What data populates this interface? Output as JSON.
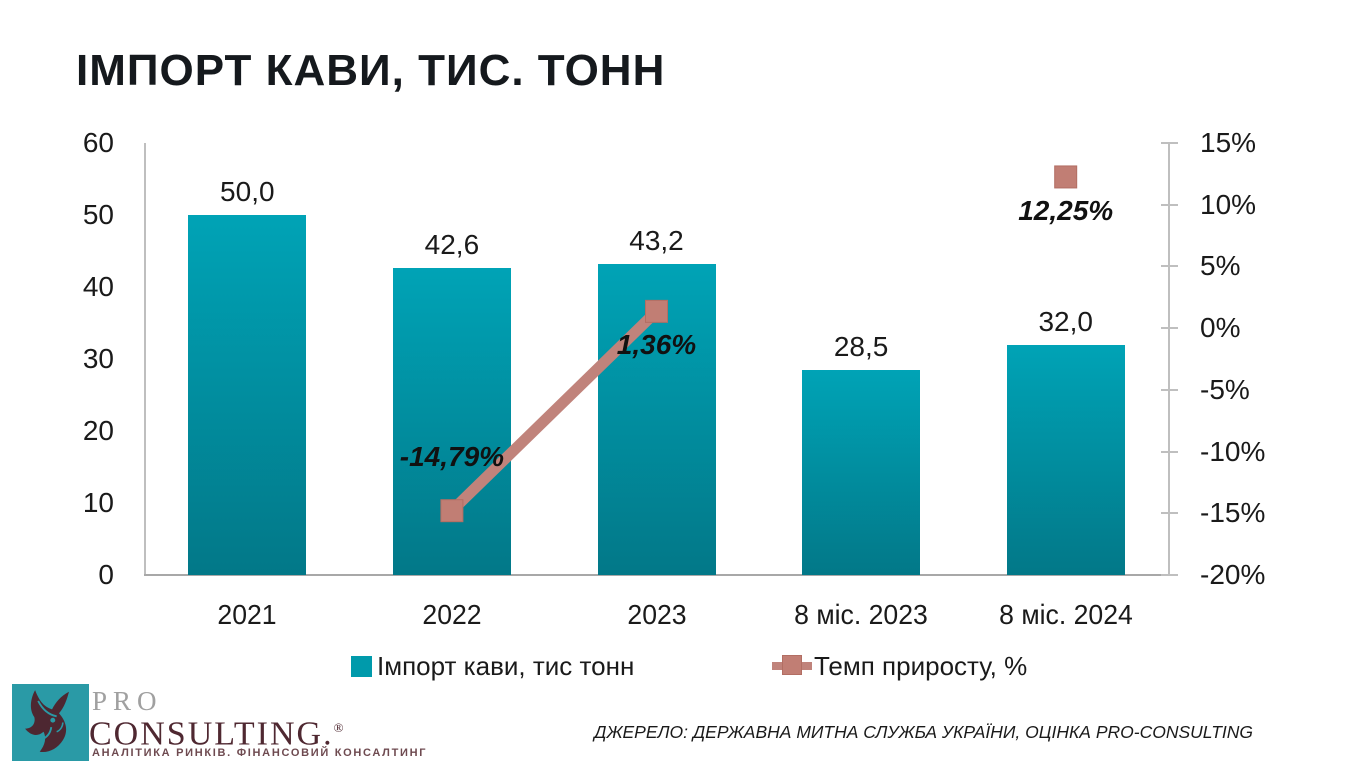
{
  "title": "ІМПОРТ КАВИ, ТИС. ТОНН",
  "chart_data": {
    "type": "combo bar+line",
    "categories": [
      "2021",
      "2022",
      "2023",
      "8 міс. 2023",
      "8 міс. 2024"
    ],
    "bar_series": {
      "name": "Імпорт кави, тис тонн",
      "values": [
        50.0,
        42.6,
        43.2,
        28.5,
        32.0
      ],
      "value_labels": [
        "50,0",
        "42,6",
        "43,2",
        "28,5",
        "32,0"
      ]
    },
    "line_series": {
      "name": "Темп приросту, %",
      "points": [
        {
          "category_index": 1,
          "value": -14.79,
          "label": "-14,79%",
          "label_pos": "above"
        },
        {
          "category_index": 2,
          "value": 1.36,
          "label": "1,36%",
          "label_pos": "below"
        },
        {
          "category_index": 4,
          "value": 12.25,
          "label": "12,25%",
          "label_pos": "below"
        }
      ],
      "segments": [
        [
          1,
          2
        ]
      ]
    },
    "left_axis": {
      "min": 0,
      "max": 60,
      "ticks": [
        "60",
        "50",
        "40",
        "30",
        "20",
        "10",
        "0"
      ]
    },
    "right_axis": {
      "min": -20,
      "max": 15,
      "ticks": [
        "15%",
        "10%",
        "5%",
        "0%",
        "-5%",
        "-10%",
        "-15%",
        "-20%"
      ]
    },
    "grid": false,
    "legend_position": "bottom",
    "legend": [
      {
        "label": "Імпорт кави, тис тонн",
        "marker": "square"
      },
      {
        "label": "Темп приросту, %",
        "marker": "line-square"
      }
    ]
  },
  "colors": {
    "bar_top": "#00a3b6",
    "bar_bottom": "#027888",
    "line": "#c0837b",
    "marker": "#c17e74",
    "marker_border": "#b26e63",
    "legend_bar": "#009aab",
    "axis": "#bfbfbf",
    "baseline": "#a8a8a8",
    "logo_teal": "#2a9aa6",
    "logo_rhino": "#4d2731"
  },
  "footer": {
    "brand_top": "PRO",
    "brand_main": "CONSULTING.",
    "reg_mark": "®",
    "tagline": "АНАЛІТИКА РИНКІВ. ФІНАНСОВИЙ КОНСАЛТИНГ",
    "source": "ДЖЕРЕЛО: ДЕРЖАВНА МИТНА СЛУЖБА УКРАЇНИ, ОЦІНКА PRO-CONSULTING"
  }
}
